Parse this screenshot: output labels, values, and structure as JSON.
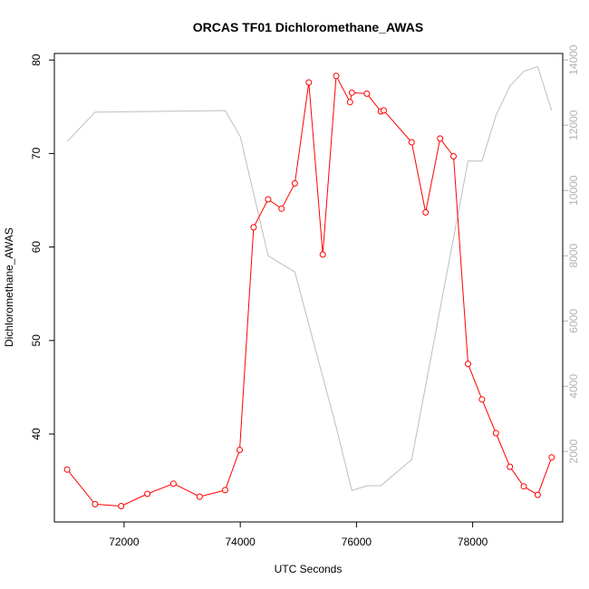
{
  "chart_data": {
    "type": "line",
    "title": "ORCAS TF01 Dichloromethane_AWAS",
    "xlabel": "UTC Seconds",
    "ylabel": "Dichloromethane_AWAS",
    "xlim": [
      70800,
      79550
    ],
    "ylim": [
      30.6,
      80.7
    ],
    "y2lim": [
      -160,
      14200
    ],
    "x_ticks": [
      72000,
      74000,
      76000,
      78000
    ],
    "y_ticks": [
      40,
      50,
      60,
      70,
      80
    ],
    "y2_ticks": [
      2000,
      4000,
      6000,
      8000,
      10000,
      12000,
      14000
    ],
    "colors": {
      "series": "#ff0000",
      "secondary": "#bebebe",
      "axis": "#000000",
      "right_axis": "#b3b3b3"
    },
    "series": [
      {
        "color": "#ff0000",
        "marker": "open-circle",
        "x": [
          71020,
          71500,
          71950,
          72400,
          72850,
          73300,
          73740,
          73990,
          74230,
          74480,
          74710,
          74940,
          75180,
          75420,
          75650,
          75890,
          75920,
          76180,
          76420,
          76470,
          76950,
          77190,
          77440,
          77670,
          77920,
          78160,
          78400,
          78640,
          78880,
          79120,
          79360
        ],
        "y": [
          36.2,
          32.5,
          32.3,
          33.6,
          34.7,
          33.3,
          34.0,
          38.3,
          62.1,
          65.1,
          64.1,
          66.8,
          77.6,
          59.2,
          78.3,
          75.5,
          76.5,
          76.4,
          74.5,
          74.6,
          71.2,
          63.7,
          71.6,
          69.7,
          47.5,
          43.7,
          40.1,
          36.5,
          34.4,
          33.5,
          37.5
        ]
      },
      {
        "color": "#bebebe",
        "axis": "right",
        "x": [
          71020,
          71500,
          73740,
          74000,
          74480,
          74940,
          75650,
          75920,
          76180,
          76420,
          76950,
          77920,
          78160,
          78400,
          78640,
          78880,
          79120,
          79360
        ],
        "y": [
          11500,
          12400,
          12450,
          11650,
          8000,
          7500,
          2750,
          800,
          950,
          950,
          1750,
          10900,
          10900,
          12300,
          13200,
          13650,
          13800,
          12450
        ]
      }
    ]
  }
}
